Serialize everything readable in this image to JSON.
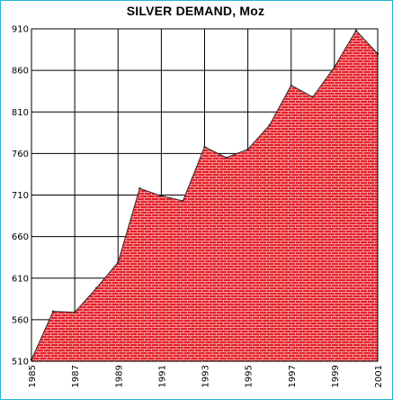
{
  "chart_data": {
    "type": "area",
    "title": "SILVER DEMAND, Moz",
    "xlabel": "",
    "ylabel": "",
    "x": [
      1985,
      1986,
      1987,
      1988,
      1989,
      1990,
      1991,
      1992,
      1993,
      1994,
      1995,
      1996,
      1997,
      1998,
      1999,
      2000,
      2001
    ],
    "values": [
      512,
      570,
      569,
      598,
      629,
      718,
      709,
      703,
      768,
      755,
      765,
      794,
      842,
      828,
      864,
      908,
      880
    ],
    "ylim": [
      510,
      910
    ],
    "xlim": [
      1985,
      2001
    ],
    "yticks": [
      510,
      560,
      610,
      660,
      710,
      760,
      810,
      860,
      910
    ],
    "xticks": [
      1985,
      1987,
      1989,
      1991,
      1993,
      1995,
      1997,
      1999,
      2001
    ],
    "x_gridlines": [
      1985,
      1987,
      1989,
      1991,
      1993,
      1995,
      1997,
      1999,
      2001
    ],
    "grid": true,
    "legend": "none",
    "fill_color": "#e5202a",
    "fill_pattern": "brick",
    "pattern_line_color": "#f7b6b8",
    "frame_color": "#22b8cf"
  }
}
